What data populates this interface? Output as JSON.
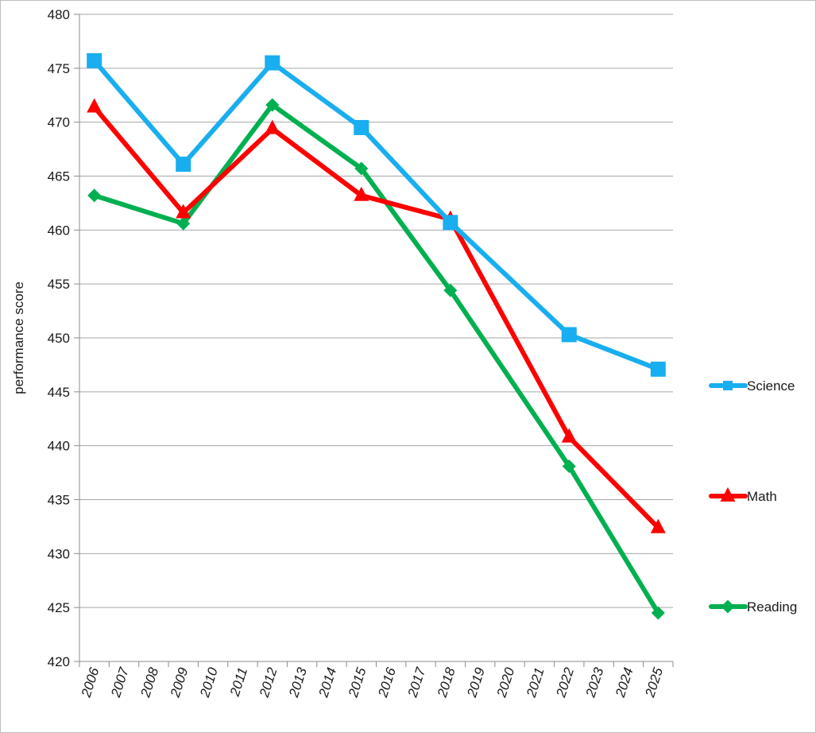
{
  "chart_data": {
    "type": "line",
    "title": "",
    "xlabel": "",
    "ylabel": "performance  score",
    "x_categories": [
      "2006",
      "2007",
      "2008",
      "2009",
      "2010",
      "2011",
      "2012",
      "2013",
      "2014",
      "2015",
      "2016",
      "2017",
      "2018",
      "2019",
      "2020",
      "2021",
      "2022",
      "2023",
      "2024",
      "2025"
    ],
    "ylim": [
      420,
      480
    ],
    "y_ticks": [
      420,
      425,
      430,
      435,
      440,
      445,
      450,
      455,
      460,
      465,
      470,
      475,
      480
    ],
    "grid": true,
    "legend": "right",
    "series": [
      {
        "name": "Science",
        "color": "#19aeef",
        "marker": "square",
        "points": [
          {
            "x": "2006",
            "y": 475.7
          },
          {
            "x": "2009",
            "y": 466.1
          },
          {
            "x": "2012",
            "y": 475.5
          },
          {
            "x": "2015",
            "y": 469.5
          },
          {
            "x": "2018",
            "y": 460.7
          },
          {
            "x": "2022",
            "y": 450.3
          },
          {
            "x": "2025",
            "y": 447.1
          }
        ]
      },
      {
        "name": "Math",
        "color": "#ff0000",
        "marker": "triangle",
        "points": [
          {
            "x": "2006",
            "y": 471.4
          },
          {
            "x": "2009",
            "y": 461.6
          },
          {
            "x": "2012",
            "y": 469.4
          },
          {
            "x": "2015",
            "y": 463.2
          },
          {
            "x": "2018",
            "y": 461.0
          },
          {
            "x": "2022",
            "y": 440.8
          },
          {
            "x": "2025",
            "y": 432.4
          }
        ]
      },
      {
        "name": "Reading",
        "color": "#00b050",
        "marker": "diamond",
        "points": [
          {
            "x": "2006",
            "y": 463.2
          },
          {
            "x": "2009",
            "y": 460.6
          },
          {
            "x": "2012",
            "y": 471.6
          },
          {
            "x": "2015",
            "y": 465.7
          },
          {
            "x": "2018",
            "y": 454.4
          },
          {
            "x": "2022",
            "y": 438.1
          },
          {
            "x": "2025",
            "y": 424.5
          }
        ]
      }
    ]
  }
}
